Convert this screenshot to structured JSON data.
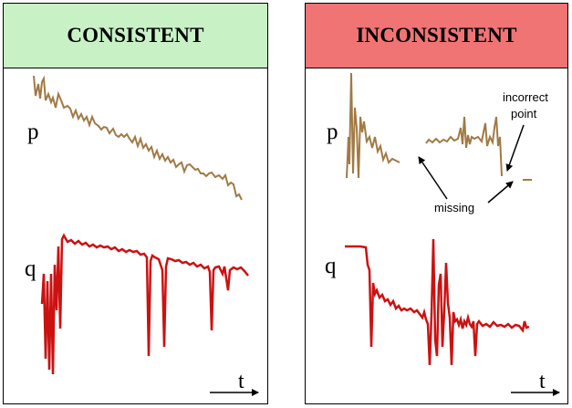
{
  "panels": {
    "consistent": {
      "title": "CONSISTENT",
      "header_color": "#c8f2c6",
      "p_label": "p",
      "q_label": "q",
      "t_label": "t"
    },
    "inconsistent": {
      "title": "INCONSISTENT",
      "header_color": "#f07474",
      "p_label": "p",
      "q_label": "q",
      "t_label": "t",
      "annotation_incorrect": [
        "incorrect",
        "point"
      ],
      "annotation_missing": "missing"
    }
  },
  "colors": {
    "p_series": "#a07a45",
    "q_series": "#cc1111"
  }
}
